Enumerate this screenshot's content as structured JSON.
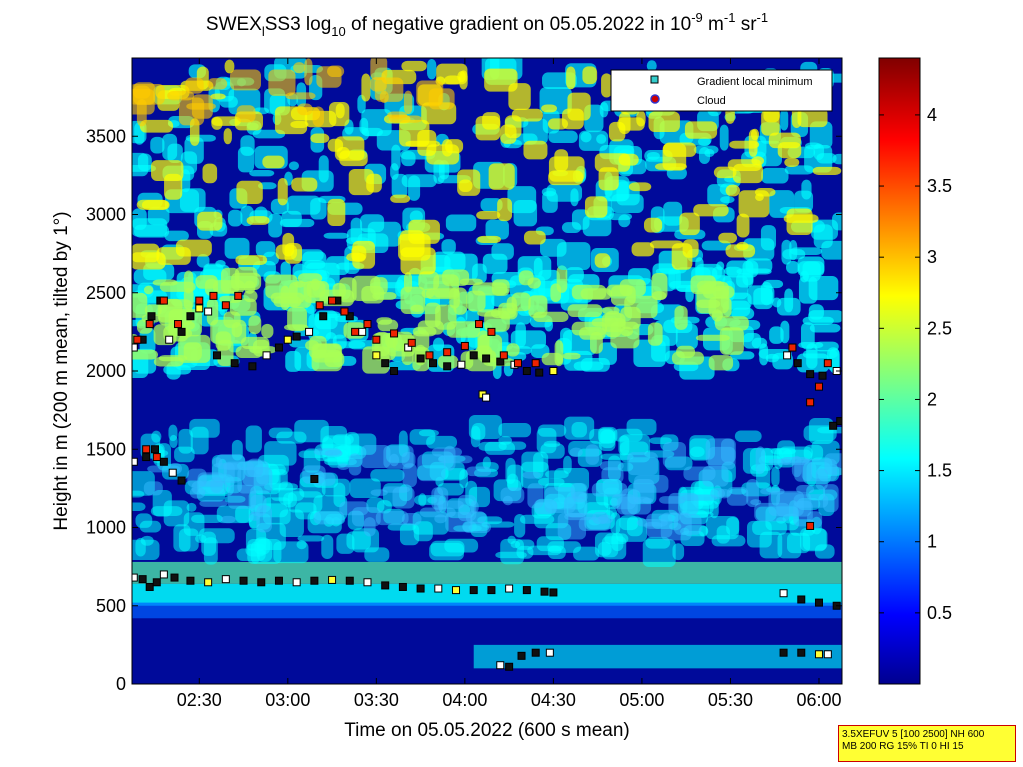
{
  "chart_data": {
    "type": "heatmap",
    "title": {
      "prefix": "SWEX",
      "prefix_sub": "l",
      "mid": "SS3 log",
      "log_sub": "10",
      "text": " of negative gradient on 05.05.2022 in 10",
      "exp1": "-9",
      "unit1": " m",
      "exp2": "-1",
      "unit2": " sr",
      "exp3": "-1"
    },
    "xlabel": "Time on 05.05.2022 (600 s mean)",
    "ylabel": "Height in m (200 m mean, tilted by 1°)",
    "x_ticks": [
      "02:30",
      "03:00",
      "03:30",
      "04:00",
      "04:30",
      "05:00",
      "05:30",
      "06:00"
    ],
    "x_tick_hours": [
      2.5,
      3.0,
      3.5,
      4.0,
      4.5,
      5.0,
      5.5,
      6.0
    ],
    "xlim_hours": [
      2.12,
      6.13
    ],
    "y_ticks": [
      "0",
      "500",
      "1000",
      "1500",
      "2000",
      "2500",
      "3000",
      "3500"
    ],
    "ylim": [
      0,
      4000
    ],
    "colorbar": {
      "ticks": [
        "0.5",
        "1",
        "1.5",
        "2",
        "2.5",
        "3",
        "3.5",
        "4"
      ],
      "range": [
        0,
        4.4
      ],
      "colormap": "jet"
    },
    "legend": {
      "position": "top-right",
      "entries": [
        {
          "label": "Gradient local minimum",
          "marker": "square",
          "color": "#33cccc"
        },
        {
          "label": "Cloud",
          "marker": "circle",
          "color": "#cc0000",
          "edge": "#3333cc"
        }
      ]
    },
    "layers_description_colors": {
      "low": "#00008f",
      "mid": "#00ffff",
      "high": "#ffff00",
      "peak": "#ff0000"
    },
    "series": [
      {
        "kind": "gradient-minimum-low",
        "points_hours_height": [
          [
            2.13,
            680
          ],
          [
            2.18,
            670
          ],
          [
            2.22,
            620
          ],
          [
            2.26,
            650
          ],
          [
            2.3,
            700
          ],
          [
            2.36,
            680
          ],
          [
            2.45,
            660
          ],
          [
            2.55,
            650
          ],
          [
            2.65,
            670
          ],
          [
            2.75,
            660
          ],
          [
            2.85,
            650
          ],
          [
            2.95,
            660
          ],
          [
            3.05,
            650
          ],
          [
            3.15,
            660
          ],
          [
            3.25,
            665
          ],
          [
            3.35,
            660
          ],
          [
            3.45,
            650
          ],
          [
            3.55,
            630
          ],
          [
            3.65,
            620
          ],
          [
            3.75,
            610
          ],
          [
            3.85,
            610
          ],
          [
            3.95,
            600
          ],
          [
            4.05,
            600
          ],
          [
            4.15,
            600
          ],
          [
            4.25,
            610
          ],
          [
            4.35,
            600
          ],
          [
            4.45,
            590
          ],
          [
            4.5,
            585
          ],
          [
            5.8,
            580
          ],
          [
            5.9,
            540
          ],
          [
            6.0,
            520
          ],
          [
            6.1,
            500
          ]
        ]
      },
      {
        "kind": "gradient-minimum-surface",
        "points_hours_height": [
          [
            4.2,
            120
          ],
          [
            4.25,
            110
          ],
          [
            4.32,
            180
          ],
          [
            4.4,
            200
          ],
          [
            4.48,
            200
          ],
          [
            5.8,
            200
          ],
          [
            5.9,
            200
          ],
          [
            6.0,
            190
          ],
          [
            6.05,
            190
          ]
        ]
      },
      {
        "kind": "gradient-minimum-mid",
        "points_hours_height": [
          [
            2.13,
            1420
          ],
          [
            2.2,
            1450
          ],
          [
            2.25,
            1500
          ],
          [
            2.3,
            1420
          ],
          [
            2.35,
            1350
          ],
          [
            2.4,
            1300
          ],
          [
            3.15,
            1310
          ],
          [
            4.1,
            1850
          ],
          [
            4.12,
            1830
          ],
          [
            6.08,
            1650
          ],
          [
            6.12,
            1680
          ]
        ]
      },
      {
        "kind": "gradient-minimum-upper",
        "points_hours_height": [
          [
            2.13,
            2150
          ],
          [
            2.18,
            2200
          ],
          [
            2.23,
            2350
          ],
          [
            2.28,
            2450
          ],
          [
            2.33,
            2200
          ],
          [
            2.4,
            2250
          ],
          [
            2.45,
            2350
          ],
          [
            2.5,
            2400
          ],
          [
            2.55,
            2380
          ],
          [
            2.6,
            2100
          ],
          [
            2.7,
            2050
          ],
          [
            2.8,
            2030
          ],
          [
            2.88,
            2100
          ],
          [
            2.95,
            2150
          ],
          [
            3.0,
            2200
          ],
          [
            3.05,
            2220
          ],
          [
            3.12,
            2250
          ],
          [
            3.2,
            2350
          ],
          [
            3.28,
            2450
          ],
          [
            3.35,
            2350
          ],
          [
            3.42,
            2250
          ],
          [
            3.5,
            2100
          ],
          [
            3.55,
            2050
          ],
          [
            3.6,
            2000
          ],
          [
            3.68,
            2150
          ],
          [
            3.75,
            2080
          ],
          [
            3.82,
            2050
          ],
          [
            3.9,
            2030
          ],
          [
            3.98,
            2040
          ],
          [
            4.05,
            2100
          ],
          [
            4.12,
            2080
          ],
          [
            4.2,
            2060
          ],
          [
            4.28,
            2040
          ],
          [
            4.35,
            2000
          ],
          [
            4.42,
            1990
          ],
          [
            4.5,
            2000
          ],
          [
            5.82,
            2100
          ],
          [
            5.88,
            2050
          ],
          [
            5.95,
            1980
          ],
          [
            6.02,
            1970
          ],
          [
            6.1,
            2000
          ]
        ]
      },
      {
        "kind": "cloud",
        "points_hours_height": [
          [
            2.15,
            2200
          ],
          [
            2.22,
            2300
          ],
          [
            2.3,
            2450
          ],
          [
            2.38,
            2300
          ],
          [
            2.5,
            2450
          ],
          [
            2.58,
            2480
          ],
          [
            2.65,
            2420
          ],
          [
            2.72,
            2480
          ],
          [
            3.18,
            2420
          ],
          [
            3.25,
            2450
          ],
          [
            3.32,
            2380
          ],
          [
            3.38,
            2250
          ],
          [
            3.45,
            2300
          ],
          [
            3.5,
            2200
          ],
          [
            3.6,
            2240
          ],
          [
            3.7,
            2180
          ],
          [
            3.8,
            2100
          ],
          [
            3.9,
            2120
          ],
          [
            4.0,
            2160
          ],
          [
            4.08,
            2300
          ],
          [
            4.15,
            2250
          ],
          [
            4.22,
            2100
          ],
          [
            4.3,
            2050
          ],
          [
            4.4,
            2050
          ],
          [
            2.2,
            1500
          ],
          [
            2.26,
            1450
          ],
          [
            5.85,
            2150
          ],
          [
            5.95,
            1800
          ],
          [
            6.0,
            1900
          ],
          [
            6.05,
            2050
          ],
          [
            5.95,
            1010
          ]
        ]
      }
    ]
  },
  "info_box": {
    "line1": "3.5XEFUV 5 [100 2500] NH 600",
    "line2": "MB 200 RG 15% TI 0 HI 15"
  }
}
